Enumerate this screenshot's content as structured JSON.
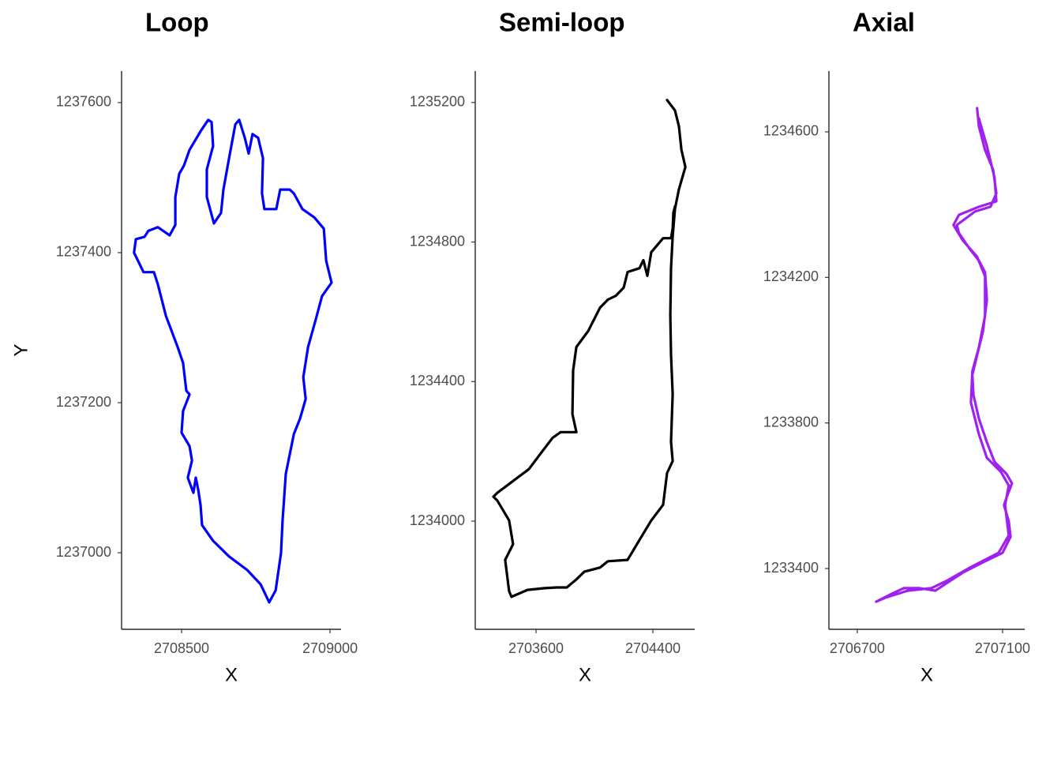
{
  "chart_data": [
    {
      "type": "line",
      "title": "Loop",
      "x_label": "X",
      "y_label": "Y",
      "color": "#0000ff",
      "xlim": [
        2708298,
        2709037
      ],
      "ylim": [
        1236898,
        1237642
      ],
      "xticks": [
        2708500,
        2709000
      ],
      "yticks": [
        1237000,
        1237200,
        1237400,
        1237600
      ],
      "x": [
        2708795,
        2708817,
        2708835,
        2708840,
        2708851,
        2708878,
        2708899,
        2708918,
        2708910,
        2708926,
        2708952,
        2708973,
        2709005,
        2708987,
        2708979,
        2708947,
        2708907,
        2708878,
        2708864,
        2708832,
        2708819,
        2708779,
        2708771,
        2708774,
        2708758,
        2708739,
        2708726,
        2708713,
        2708694,
        2708681,
        2708660,
        2708641,
        2708633,
        2708609,
        2708585,
        2708585,
        2708606,
        2708601,
        2708590,
        2708566,
        2708527,
        2708508,
        2708492,
        2708479,
        2708479,
        2708460,
        2708420,
        2708388,
        2708375,
        2708346,
        2708340,
        2708372,
        2708407,
        2708420,
        2708447,
        2708487,
        2708505,
        2708516,
        2708527,
        2708505,
        2708500,
        2708527,
        2708535,
        2708521,
        2708540,
        2708548,
        2708556,
        2708564,
        2708569,
        2708606,
        2708660,
        2708721,
        2708766,
        2708795
      ],
      "values": [
        1236934,
        1236950,
        1237000,
        1237042,
        1237105,
        1237158,
        1237179,
        1237205,
        1237234,
        1237274,
        1237311,
        1237342,
        1237360,
        1237389,
        1237432,
        1237447,
        1237458,
        1237479,
        1237484,
        1237484,
        1237458,
        1237458,
        1237479,
        1237526,
        1237553,
        1237558,
        1237532,
        1237553,
        1237577,
        1237571,
        1237526,
        1237484,
        1237453,
        1237439,
        1237474,
        1237511,
        1237542,
        1237574,
        1237577,
        1237563,
        1237537,
        1237516,
        1237505,
        1237474,
        1237437,
        1237423,
        1237434,
        1237429,
        1237421,
        1237418,
        1237400,
        1237374,
        1237374,
        1237358,
        1237316,
        1237274,
        1237253,
        1237216,
        1237211,
        1237189,
        1237160,
        1237142,
        1237123,
        1237100,
        1237080,
        1237100,
        1237084,
        1237063,
        1237037,
        1237016,
        1236995,
        1236977,
        1236958,
        1236934
      ]
    },
    {
      "type": "line",
      "title": "Semi-loop",
      "x_label": "X",
      "color": "#000000",
      "xlim": [
        2703184,
        2704686
      ],
      "ylim": [
        1233690,
        1235290
      ],
      "xticks": [
        2703600,
        2704400
      ],
      "yticks": [
        1234000,
        1234400,
        1234800,
        1235200
      ],
      "x": [
        2704497,
        2704551,
        2704578,
        2704595,
        2704622,
        2704578,
        2704551,
        2704535,
        2704524,
        2704519,
        2704524,
        2704535,
        2704524,
        2704535,
        2704497,
        2704470,
        2704389,
        2704308,
        2704227,
        2704092,
        2704038,
        2703930,
        2703876,
        2703811,
        2703741,
        2703659,
        2703541,
        2703432,
        2703416,
        2703389,
        2703443,
        2703416,
        2703335,
        2703308,
        2703335,
        2703443,
        2703551,
        2703632,
        2703714,
        2703768,
        2703876,
        2703849,
        2703854,
        2703876,
        2703957,
        2704038,
        2704092,
        2704146,
        2704200,
        2704227,
        2704308,
        2704335,
        2704362,
        2704389,
        2704470,
        2704524,
        2704535,
        2704540,
        2704551
      ],
      "values": [
        1235207,
        1235177,
        1235132,
        1235064,
        1235015,
        1234951,
        1234895,
        1234816,
        1234725,
        1234590,
        1234477,
        1234364,
        1234228,
        1234172,
        1234138,
        1234047,
        1234002,
        1233946,
        1233889,
        1233885,
        1233867,
        1233855,
        1233833,
        1233810,
        1233810,
        1233808,
        1233803,
        1233783,
        1233799,
        1233889,
        1233934,
        1234002,
        1234059,
        1234070,
        1234081,
        1234115,
        1234149,
        1234194,
        1234239,
        1234255,
        1234255,
        1234307,
        1234432,
        1234499,
        1234545,
        1234612,
        1234635,
        1234646,
        1234669,
        1234714,
        1234725,
        1234748,
        1234703,
        1234771,
        1234811,
        1234811,
        1234838,
        1234884,
        1234902
      ]
    },
    {
      "type": "line",
      "title": "Axial",
      "x_label": "X",
      "color": "#a020f0",
      "xlim": [
        2706622,
        2707161
      ],
      "ylim": [
        1233233,
        1234767
      ],
      "xticks": [
        2706700,
        2707100
      ],
      "yticks": [
        1233400,
        1233800,
        1234200,
        1234600
      ],
      "x": [
        2707030,
        2707035,
        2707052,
        2707074,
        2707083,
        2707067,
        2707024,
        2706974,
        2706980,
        2707009,
        2707035,
        2707052,
        2707057,
        2707046,
        2707030,
        2707017,
        2707020,
        2707035,
        2707057,
        2707078,
        2707111,
        2707126,
        2707111,
        2707104,
        2707117,
        2707122,
        2707100,
        2707046,
        2706991,
        2706948,
        2706915,
        2706872,
        2706828,
        2706796,
        2706752,
        2706778,
        2706839,
        2706904,
        2706948,
        2707013,
        2707089,
        2707117,
        2707107,
        2707117,
        2707096,
        2707057,
        2707035,
        2707013,
        2707017,
        2707035,
        2707052,
        2707052,
        2707030,
        2706991,
        2706965,
        2706980,
        2707035,
        2707083,
        2707078,
        2707057,
        2707035
      ],
      "values": [
        1234665,
        1234615,
        1234550,
        1234496,
        1234431,
        1234394,
        1234381,
        1234344,
        1234322,
        1234279,
        1234246,
        1234214,
        1234138,
        1234051,
        1233986,
        1233932,
        1233877,
        1233812,
        1233747,
        1233693,
        1233660,
        1233634,
        1233595,
        1233574,
        1233530,
        1233487,
        1233443,
        1233417,
        1233389,
        1233361,
        1233339,
        1233346,
        1233346,
        1233331,
        1233309,
        1233320,
        1233339,
        1233346,
        1233367,
        1233404,
        1233443,
        1233491,
        1233574,
        1233628,
        1233665,
        1233704,
        1233769,
        1233856,
        1233942,
        1234008,
        1234094,
        1234203,
        1234257,
        1234301,
        1234344,
        1234372,
        1234394,
        1234409,
        1234474,
        1234561,
        1234637
      ]
    }
  ]
}
